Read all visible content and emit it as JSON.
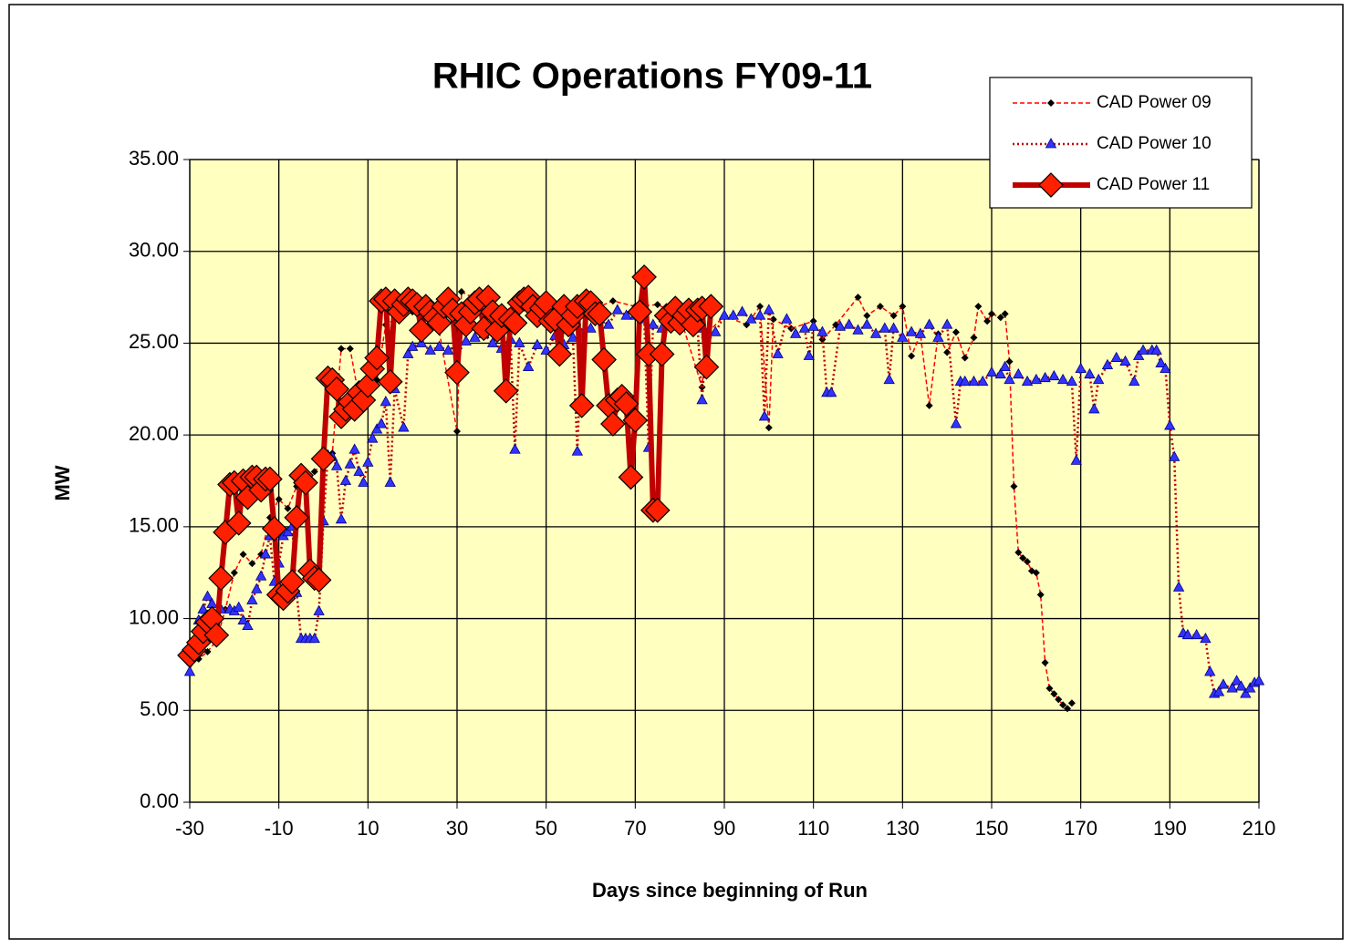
{
  "chart_data": {
    "type": "line",
    "title": "RHIC Operations FY09-11",
    "x_label": "Days since beginning of Run",
    "y_label": "MW",
    "xlim": [
      -30,
      210
    ],
    "xticks": [
      -30,
      -10,
      10,
      30,
      50,
      70,
      90,
      110,
      130,
      150,
      170,
      190,
      210
    ],
    "ylim": [
      0,
      35
    ],
    "yticks": [
      {
        "value": 0,
        "label": "0.00"
      },
      {
        "value": 5,
        "label": "5.00"
      },
      {
        "value": 10,
        "label": "10.00"
      },
      {
        "value": 15,
        "label": "15.00"
      },
      {
        "value": 20,
        "label": "20.00"
      },
      {
        "value": 25,
        "label": "25.00"
      },
      {
        "value": 30,
        "label": "30.00"
      },
      {
        "value": 35,
        "label": "35.00"
      }
    ],
    "grid": true,
    "legend": "top-right",
    "background": "#ffffc0",
    "series": [
      {
        "name": "CAD Power 09",
        "color": "#ff0000",
        "line": "dashed",
        "marker": "diamond",
        "marker_color": "#000000",
        "x": [
          -30,
          -28,
          -26,
          -24,
          -22,
          -20,
          -18,
          -16,
          -14,
          -12,
          -10,
          -8,
          -6,
          -4,
          -2,
          0,
          2,
          4,
          6,
          8,
          10,
          12,
          14,
          16,
          18,
          20,
          25,
          30,
          31,
          35,
          40,
          45,
          50,
          55,
          60,
          65,
          70,
          75,
          80,
          85,
          86,
          90,
          95,
          98,
          100,
          101,
          105,
          110,
          112,
          115,
          120,
          122,
          125,
          128,
          130,
          132,
          134,
          136,
          138,
          140,
          142,
          144,
          146,
          147,
          149,
          150,
          152,
          153,
          154,
          155,
          156,
          157,
          158,
          159,
          160,
          161,
          162,
          163,
          164,
          165,
          166,
          167,
          168
        ],
        "values": [
          7.5,
          7.8,
          8.2,
          8.8,
          10.5,
          12.5,
          13.5,
          13.0,
          13.5,
          15.5,
          16.5,
          16.0,
          17.2,
          17.5,
          18.0,
          18.5,
          19.0,
          24.7,
          24.7,
          22.0,
          22.5,
          23.0,
          26.0,
          26.3,
          26.5,
          26.7,
          27.0,
          20.2,
          27.8,
          27.3,
          26.8,
          27.0,
          26.5,
          27.2,
          26.8,
          27.3,
          27.0,
          27.1,
          26.5,
          22.6,
          25.5,
          26.5,
          26.0,
          27.0,
          20.4,
          26.3,
          25.8,
          26.2,
          25.2,
          26.0,
          27.5,
          26.5,
          27.0,
          26.5,
          27.0,
          24.3,
          25.5,
          21.6,
          25.5,
          24.5,
          25.6,
          24.2,
          25.3,
          27.0,
          26.2,
          26.6,
          26.4,
          26.6,
          24.0,
          17.2,
          13.6,
          13.3,
          13.1,
          12.6,
          12.5,
          11.3,
          7.6,
          6.2,
          5.9,
          5.6,
          5.3,
          5.1,
          5.4
        ]
      },
      {
        "name": "CAD Power 10",
        "color": "#c00000",
        "line": "dotted",
        "marker": "triangle",
        "marker_color": "#3333ff",
        "x": [
          -30,
          -28,
          -27,
          -26,
          -25,
          -23,
          -21,
          -20,
          -19,
          -18,
          -17,
          -16,
          -15,
          -14,
          -13,
          -12,
          -11,
          -10,
          -9,
          -8,
          -7,
          -6,
          -5,
          -4,
          -3,
          -2,
          -1,
          0,
          1,
          2,
          3,
          4,
          5,
          6,
          7,
          8,
          9,
          10,
          11,
          12,
          13,
          14,
          15,
          16,
          18,
          19,
          20,
          22,
          24,
          26,
          28,
          30,
          32,
          34,
          36,
          38,
          40,
          42,
          43,
          44,
          46,
          48,
          50,
          52,
          54,
          56,
          57,
          58,
          60,
          62,
          64,
          66,
          68,
          70,
          72,
          73,
          74,
          76,
          78,
          80,
          82,
          84,
          85,
          86,
          88,
          90,
          92,
          94,
          96,
          98,
          99,
          100,
          102,
          104,
          106,
          108,
          109,
          110,
          112,
          113,
          114,
          116,
          118,
          120,
          122,
          124,
          126,
          127,
          128,
          130,
          132,
          134,
          136,
          138,
          140,
          142,
          143,
          144,
          146,
          148,
          150,
          152,
          153,
          154,
          156,
          158,
          160,
          162,
          164,
          166,
          168,
          169,
          170,
          172,
          173,
          174,
          176,
          178,
          180,
          182,
          183,
          184,
          186,
          187,
          188,
          189,
          190,
          191,
          192,
          193,
          194,
          196,
          198,
          199,
          200,
          201,
          202,
          204,
          205,
          206,
          207,
          208,
          209,
          210
        ],
        "values": [
          7.1,
          9.9,
          10.5,
          11.2,
          10.8,
          10.5,
          10.5,
          10.4,
          10.6,
          9.9,
          9.6,
          11.0,
          11.6,
          12.3,
          13.5,
          14.5,
          12.0,
          13.0,
          14.5,
          14.7,
          15.0,
          11.4,
          8.9,
          8.9,
          8.9,
          8.9,
          10.4,
          15.3,
          18.9,
          18.8,
          18.3,
          15.4,
          17.5,
          18.4,
          19.2,
          18.0,
          17.4,
          18.5,
          19.8,
          20.3,
          20.6,
          21.8,
          17.4,
          22.5,
          20.4,
          24.4,
          24.8,
          25.0,
          24.6,
          24.8,
          24.6,
          24.9,
          25.1,
          25.3,
          25.5,
          25.0,
          24.7,
          25.2,
          19.2,
          25.0,
          23.7,
          24.9,
          24.6,
          25.4,
          24.9,
          25.3,
          19.1,
          25.5,
          25.8,
          26.3,
          26.0,
          26.8,
          26.5,
          26.5,
          26.3,
          19.3,
          26.0,
          25.8,
          26.3,
          25.9,
          26.2,
          25.8,
          21.9,
          25.5,
          25.6,
          26.5,
          26.5,
          26.7,
          26.3,
          26.5,
          21.0,
          26.8,
          24.4,
          26.3,
          25.5,
          25.8,
          24.3,
          25.9,
          25.6,
          22.3,
          22.3,
          25.9,
          26.0,
          25.7,
          26.0,
          25.5,
          25.8,
          23.0,
          25.8,
          25.3,
          25.6,
          25.5,
          26.0,
          25.3,
          26.0,
          20.6,
          22.9,
          22.9,
          22.9,
          22.9,
          23.4,
          23.3,
          23.7,
          23.0,
          23.3,
          22.9,
          23.0,
          23.1,
          23.2,
          23.0,
          22.9,
          18.6,
          23.6,
          23.3,
          21.4,
          23.0,
          23.8,
          24.2,
          24.0,
          22.9,
          24.3,
          24.6,
          24.6,
          24.6,
          23.9,
          23.6,
          20.5,
          18.8,
          11.7,
          9.2,
          9.1,
          9.1,
          8.9,
          7.1,
          5.9,
          6.0,
          6.4,
          6.2,
          6.6,
          6.3,
          5.9,
          6.2,
          6.5,
          6.6
        ]
      },
      {
        "name": "CAD Power 11",
        "color": "#c00000",
        "line": "thick",
        "marker": "big-diamond",
        "marker_color": "#ff2000",
        "x": [
          -30,
          -29,
          -28,
          -27,
          -26,
          -25,
          -24,
          -23,
          -22,
          -21,
          -20,
          -19,
          -18,
          -17,
          -16,
          -15,
          -14,
          -13,
          -12,
          -11,
          -10,
          -9,
          -8,
          -7,
          -6,
          -5,
          -4,
          -3,
          -2,
          -1,
          0,
          1,
          2,
          3,
          4,
          5,
          6,
          7,
          8,
          9,
          10,
          11,
          12,
          13,
          14,
          15,
          16,
          17,
          18,
          19,
          20,
          21,
          22,
          23,
          24,
          25,
          26,
          27,
          28,
          29,
          30,
          31,
          32,
          33,
          34,
          35,
          36,
          37,
          38,
          39,
          40,
          41,
          42,
          43,
          44,
          45,
          46,
          47,
          48,
          49,
          50,
          51,
          52,
          53,
          54,
          55,
          56,
          57,
          58,
          59,
          60,
          61,
          62,
          63,
          64,
          65,
          66,
          67,
          68,
          69,
          70,
          71,
          72,
          73,
          74,
          75,
          76,
          77,
          78,
          79,
          80,
          81,
          82,
          83,
          84,
          85,
          86,
          87
        ],
        "values": [
          8.0,
          8.3,
          8.7,
          9.3,
          9.8,
          10.0,
          9.1,
          12.2,
          14.7,
          17.3,
          17.4,
          15.2,
          17.5,
          16.6,
          17.7,
          17.7,
          17.0,
          17.6,
          17.6,
          14.9,
          11.3,
          11.1,
          11.5,
          12.0,
          15.5,
          17.8,
          17.4,
          12.6,
          12.2,
          12.1,
          18.7,
          23.1,
          23.0,
          22.5,
          21.0,
          21.4,
          21.8,
          21.4,
          22.3,
          21.9,
          22.7,
          23.6,
          24.2,
          27.3,
          27.4,
          22.9,
          27.3,
          26.7,
          27.1,
          27.4,
          27.3,
          27.1,
          25.7,
          27.0,
          26.7,
          26.4,
          26.1,
          27.0,
          27.4,
          26.8,
          23.4,
          26.6,
          26.0,
          26.7,
          27.2,
          27.4,
          25.8,
          27.5,
          26.7,
          25.7,
          26.5,
          22.4,
          26.3,
          26.1,
          27.2,
          27.4,
          27.5,
          27.0,
          26.5,
          26.9,
          27.2,
          26.2,
          26.3,
          24.4,
          27.0,
          26.0,
          26.5,
          27.0,
          21.6,
          27.3,
          27.2,
          26.6,
          26.6,
          24.1,
          21.6,
          20.6,
          21.9,
          22.1,
          21.7,
          17.7,
          20.8,
          26.7,
          28.6,
          24.4,
          15.9,
          15.9,
          24.4,
          26.5,
          26.2,
          26.9,
          26.1,
          26.5,
          26.8,
          26.0,
          26.8,
          26.9,
          23.7,
          27.0
        ]
      }
    ]
  }
}
